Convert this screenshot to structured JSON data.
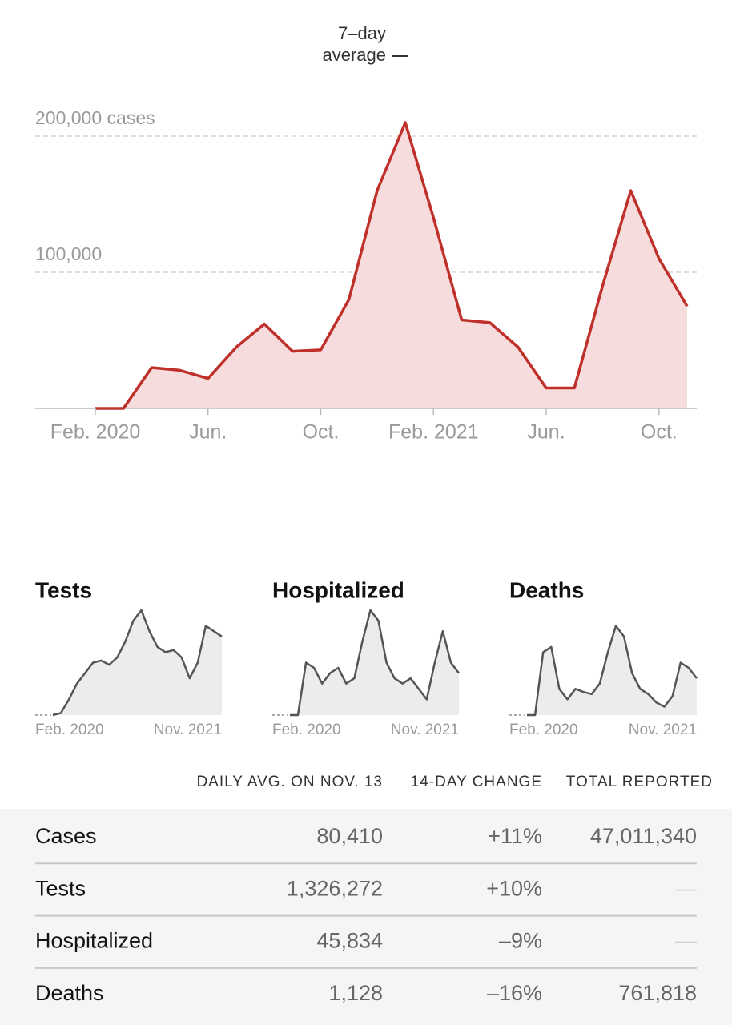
{
  "chart_data": [
    {
      "type": "area",
      "color": "#c0302b",
      "fill": "#f6dcdc",
      "annotation": {
        "lines": [
          "7–day",
          "average"
        ]
      },
      "x": [
        "2020-02",
        "2020-03",
        "2020-04",
        "2020-05",
        "2020-06",
        "2020-07",
        "2020-08",
        "2020-09",
        "2020-10",
        "2020-11",
        "2020-12",
        "2021-01",
        "2021-02",
        "2021-03",
        "2021-04",
        "2021-05",
        "2021-06",
        "2021-07",
        "2021-08",
        "2021-09",
        "2021-10",
        "2021-11"
      ],
      "values": [
        0,
        0,
        30000,
        28000,
        22000,
        45000,
        62000,
        42000,
        43000,
        80000,
        160000,
        210000,
        140000,
        65000,
        63000,
        45000,
        15000,
        15000,
        90000,
        160000,
        110000,
        75000
      ],
      "ylim": [
        0,
        260000
      ],
      "yticks": [
        {
          "value": 100000,
          "label": "100,000"
        },
        {
          "value": 200000,
          "label": "200,000 cases"
        }
      ],
      "xticks": [
        {
          "value": "2020-02",
          "label": "Feb. 2020"
        },
        {
          "value": "2020-06",
          "label": "Jun."
        },
        {
          "value": "2020-10",
          "label": "Oct."
        },
        {
          "value": "2021-02",
          "label": "Feb. 2021"
        },
        {
          "value": "2021-06",
          "label": "Jun."
        },
        {
          "value": "2021-10",
          "label": "Oct."
        }
      ],
      "grid": true
    },
    {
      "type": "area",
      "title": "Tests",
      "color": "#555555",
      "fill": "#ececec",
      "x": [
        "2020-02",
        "2020-03",
        "2020-04",
        "2020-05",
        "2020-06",
        "2020-07",
        "2020-08",
        "2020-09",
        "2020-10",
        "2020-11",
        "2020-12",
        "2021-01",
        "2021-02",
        "2021-03",
        "2021-04",
        "2021-05",
        "2021-06",
        "2021-07",
        "2021-08",
        "2021-09",
        "2021-10",
        "2021-11"
      ],
      "values": [
        0,
        2,
        15,
        30,
        40,
        50,
        52,
        48,
        55,
        70,
        90,
        100,
        80,
        65,
        60,
        62,
        55,
        35,
        50,
        85,
        80,
        75
      ],
      "ylim": [
        0,
        100
      ],
      "xticks": [
        {
          "value": "2020-02",
          "label": "Feb. 2020"
        },
        {
          "value": "2021-11",
          "label": "Nov. 2021"
        }
      ]
    },
    {
      "type": "area",
      "title": "Hospitalized",
      "color": "#555555",
      "fill": "#ececec",
      "x": [
        "2020-02",
        "2020-03",
        "2020-04",
        "2020-05",
        "2020-06",
        "2020-07",
        "2020-08",
        "2020-09",
        "2020-10",
        "2020-11",
        "2020-12",
        "2021-01",
        "2021-02",
        "2021-03",
        "2021-04",
        "2021-05",
        "2021-06",
        "2021-07",
        "2021-08",
        "2021-09",
        "2021-10",
        "2021-11"
      ],
      "values": [
        0,
        0,
        50,
        45,
        30,
        40,
        45,
        30,
        35,
        70,
        100,
        90,
        50,
        35,
        30,
        35,
        25,
        15,
        50,
        80,
        50,
        40
      ],
      "ylim": [
        0,
        100
      ],
      "xticks": [
        {
          "value": "2020-02",
          "label": "Feb. 2020"
        },
        {
          "value": "2021-11",
          "label": "Nov. 2021"
        }
      ]
    },
    {
      "type": "area",
      "title": "Deaths",
      "color": "#555555",
      "fill": "#ececec",
      "x": [
        "2020-02",
        "2020-03",
        "2020-04",
        "2020-05",
        "2020-06",
        "2020-07",
        "2020-08",
        "2020-09",
        "2020-10",
        "2020-11",
        "2020-12",
        "2021-01",
        "2021-02",
        "2021-03",
        "2021-04",
        "2021-05",
        "2021-06",
        "2021-07",
        "2021-08",
        "2021-09",
        "2021-10",
        "2021-11"
      ],
      "values": [
        0,
        0,
        60,
        65,
        25,
        15,
        25,
        22,
        20,
        30,
        60,
        85,
        75,
        40,
        25,
        20,
        12,
        8,
        18,
        50,
        45,
        35
      ],
      "ylim": [
        0,
        100
      ],
      "xticks": [
        {
          "value": "2020-02",
          "label": "Feb. 2020"
        },
        {
          "value": "2021-11",
          "label": "Nov. 2021"
        }
      ]
    }
  ],
  "table": {
    "header": [
      "DAILY AVG. ON NOV. 13",
      "14-DAY CHANGE",
      "TOTAL REPORTED"
    ],
    "rows": [
      [
        "Cases",
        "80,410",
        "+11%",
        "47,011,340"
      ],
      [
        "Tests",
        "1,326,272",
        "+10%",
        "—"
      ],
      [
        "Hospitalized",
        "45,834",
        "–9%",
        "—"
      ],
      [
        "Deaths",
        "1,128",
        "–16%",
        "761,818"
      ]
    ]
  }
}
